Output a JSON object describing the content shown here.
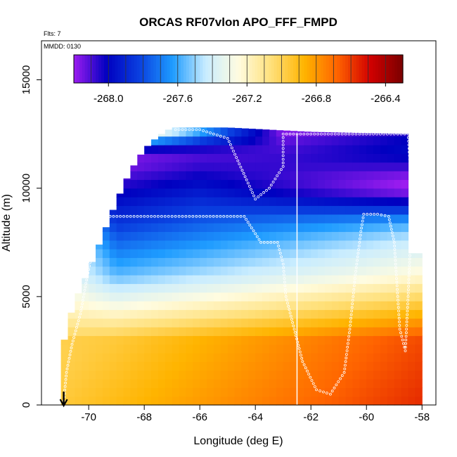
{
  "chart_data": {
    "type": "heatmap",
    "title": "ORCAS RF07vlon APO_FFF_FMPD",
    "flights_label": "Flts: 7",
    "date_label": "MMDD: 0130",
    "xlabel": "Longitude (deg E)",
    "ylabel": "Altitude (m)",
    "xlim": [
      -71.7,
      -57.5
    ],
    "ylim": [
      0,
      16800
    ],
    "x_ticks": [
      -70,
      -68,
      -66,
      -64,
      -62,
      -60,
      -58
    ],
    "x_tick_labels": [
      "-70",
      "-68",
      "-66",
      "-64",
      "-62",
      "-60",
      "-58"
    ],
    "y_ticks": [
      0,
      5000,
      10000,
      15000
    ],
    "y_tick_labels": [
      "0",
      "5000",
      "10000",
      "15000"
    ],
    "colorbar": {
      "range": [
        -268.2,
        -266.3
      ],
      "ticks": [
        -268.0,
        -267.6,
        -267.2,
        -266.8,
        -266.4
      ],
      "tick_labels": [
        "-268.0",
        "-267.6",
        "-267.2",
        "-266.8",
        "-266.4"
      ],
      "colors": [
        "#9c1cf0",
        "#0000c0",
        "#0a40e0",
        "#1e9cff",
        "#c8ecff",
        "#fffce0",
        "#ffe07a",
        "#ffb400",
        "#ff6400",
        "#d20000",
        "#7a0000"
      ]
    },
    "profile_longitude": -62.5,
    "arrow_longitude": -70.9,
    "flight_track": [
      {
        "lon": -70.9,
        "alt": 200
      },
      {
        "lon": -70.8,
        "alt": 1500
      },
      {
        "lon": -70.6,
        "alt": 2800
      },
      {
        "lon": -70.3,
        "alt": 4200
      },
      {
        "lon": -70.1,
        "alt": 5600
      },
      {
        "lon": -69.9,
        "alt": 6900
      },
      {
        "lon": -69.7,
        "alt": 8000
      },
      {
        "lon": -69.6,
        "alt": 8700
      },
      {
        "lon": -68.0,
        "alt": 8700
      },
      {
        "lon": -66.0,
        "alt": 8700
      },
      {
        "lon": -64.4,
        "alt": 8700
      },
      {
        "lon": -64.2,
        "alt": 8300
      },
      {
        "lon": -63.8,
        "alt": 7500
      },
      {
        "lon": -63.2,
        "alt": 7500
      },
      {
        "lon": -63.0,
        "alt": 6500
      },
      {
        "lon": -62.9,
        "alt": 5000
      },
      {
        "lon": -62.6,
        "alt": 3500
      },
      {
        "lon": -62.3,
        "alt": 2000
      },
      {
        "lon": -61.8,
        "alt": 700
      },
      {
        "lon": -61.3,
        "alt": 500
      },
      {
        "lon": -60.8,
        "alt": 1500
      },
      {
        "lon": -60.6,
        "alt": 3500
      },
      {
        "lon": -60.4,
        "alt": 6000
      },
      {
        "lon": -60.2,
        "alt": 8000
      },
      {
        "lon": -60.1,
        "alt": 8800
      },
      {
        "lon": -59.6,
        "alt": 8800
      },
      {
        "lon": -59.2,
        "alt": 8700
      },
      {
        "lon": -59.0,
        "alt": 7500
      },
      {
        "lon": -58.9,
        "alt": 5500
      },
      {
        "lon": -58.8,
        "alt": 3500
      },
      {
        "lon": -58.6,
        "alt": 2500
      },
      {
        "lon": -58.5,
        "alt": 5000
      },
      {
        "lon": -58.4,
        "alt": 8000
      },
      {
        "lon": -58.4,
        "alt": 10500
      },
      {
        "lon": -58.5,
        "alt": 12500
      },
      {
        "lon": -60.0,
        "alt": 12500
      },
      {
        "lon": -62.0,
        "alt": 12500
      },
      {
        "lon": -63.0,
        "alt": 12500
      },
      {
        "lon": -63.0,
        "alt": 11000
      },
      {
        "lon": -63.5,
        "alt": 10000
      },
      {
        "lon": -64.0,
        "alt": 9500
      },
      {
        "lon": -65.0,
        "alt": 12300
      },
      {
        "lon": -66.0,
        "alt": 12700
      },
      {
        "lon": -67.0,
        "alt": 12700
      }
    ]
  }
}
